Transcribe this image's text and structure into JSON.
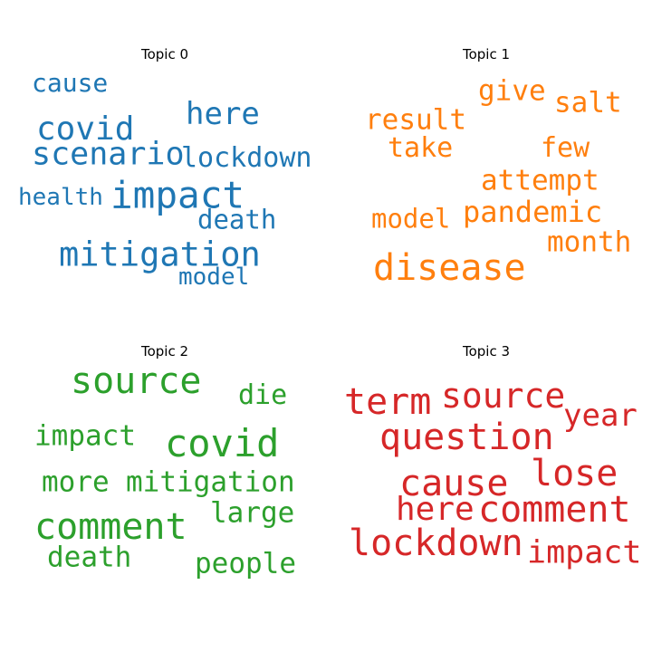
{
  "chart_data": {
    "type": "wordcloud",
    "panels": [
      {
        "title": "Topic 0",
        "color": "#1f77b4",
        "words": [
          "cause",
          "here",
          "covid",
          "scenario",
          "lockdown",
          "health",
          "impact",
          "death",
          "mitigation",
          "model"
        ]
      },
      {
        "title": "Topic 1",
        "color": "#ff7f0e",
        "words": [
          "give",
          "salt",
          "result",
          "take",
          "few",
          "attempt",
          "model",
          "pandemic",
          "month",
          "disease"
        ]
      },
      {
        "title": "Topic 2",
        "color": "#2ca02c",
        "words": [
          "source",
          "die",
          "impact",
          "covid",
          "more",
          "mitigation",
          "large",
          "comment",
          "death",
          "people"
        ]
      },
      {
        "title": "Topic 3",
        "color": "#d62728",
        "words": [
          "term",
          "source",
          "year",
          "question",
          "cause",
          "lose",
          "here",
          "comment",
          "lockdown",
          "impact"
        ]
      }
    ]
  }
}
